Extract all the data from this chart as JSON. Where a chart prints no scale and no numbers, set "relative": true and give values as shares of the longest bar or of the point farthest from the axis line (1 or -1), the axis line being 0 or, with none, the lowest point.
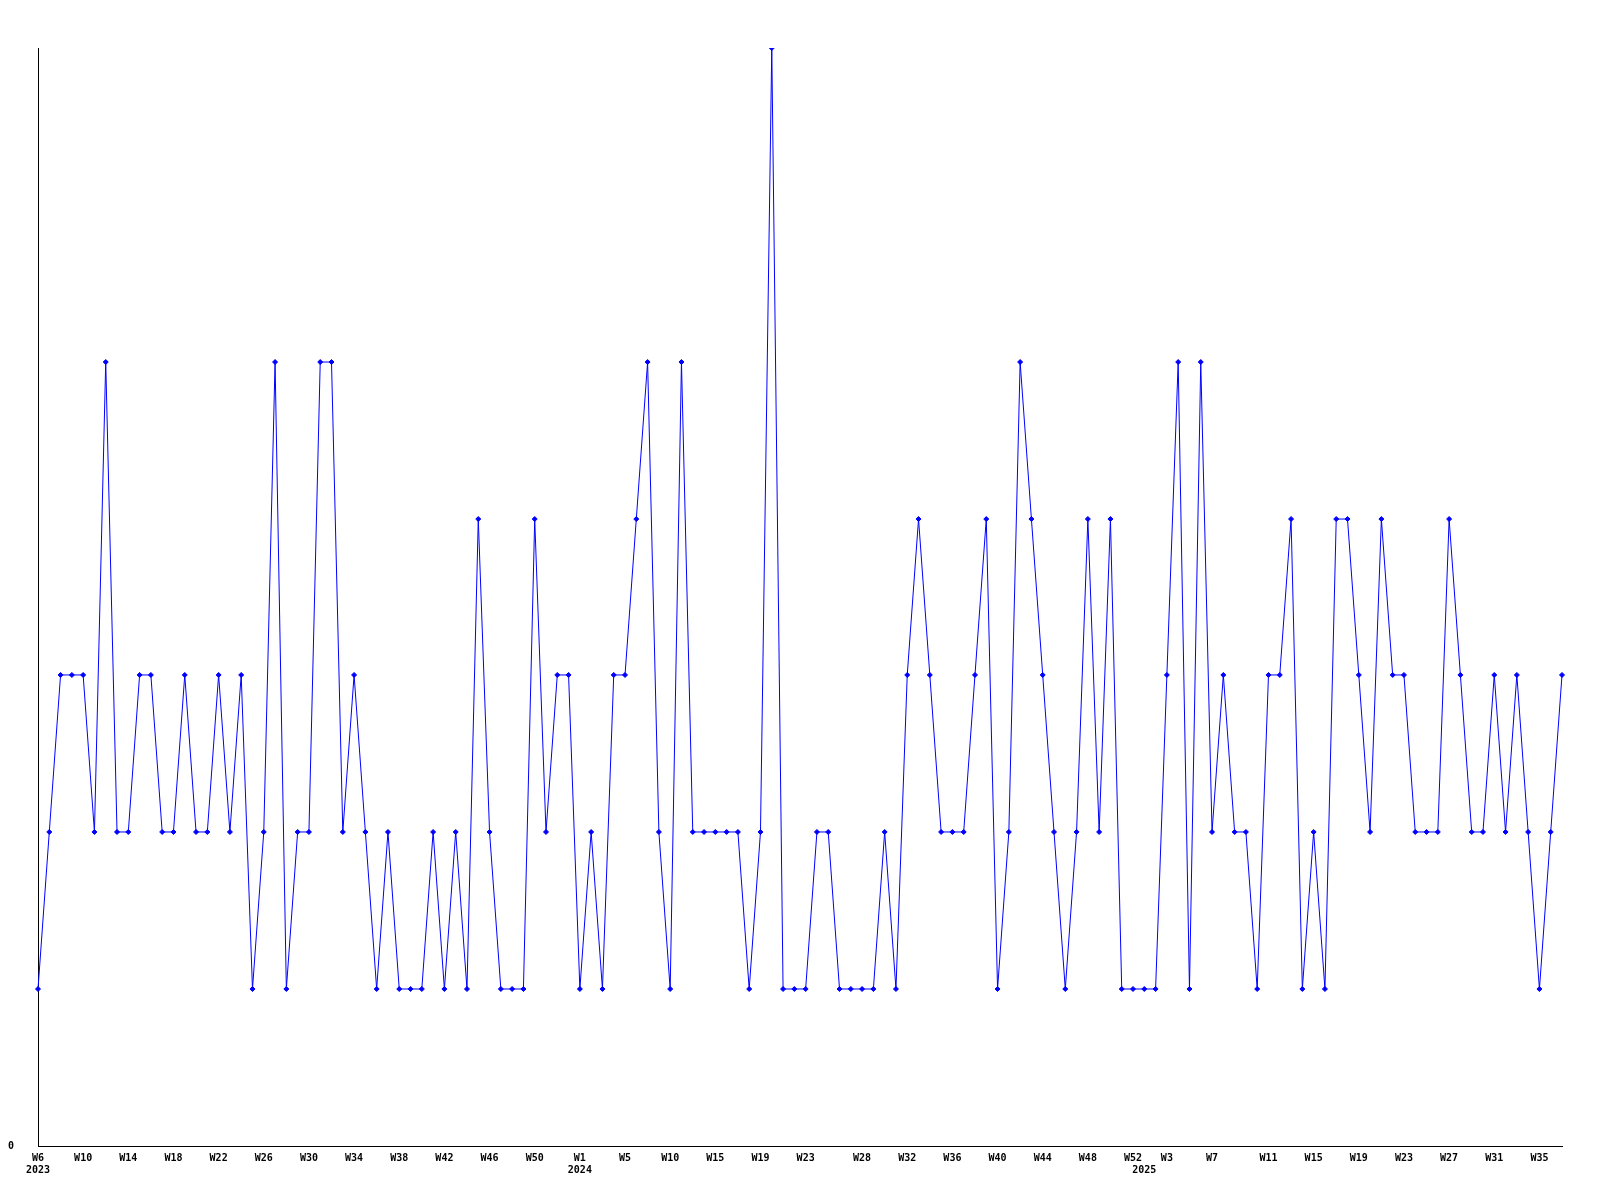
{
  "chart_data": {
    "type": "line",
    "relative": true,
    "grid": false,
    "legend": false,
    "marker": "diamond",
    "line_style": "solid",
    "annotations": [
      "0"
    ],
    "categories": [
      "W6\n2023",
      null,
      null,
      null,
      "W10",
      null,
      null,
      null,
      "W14",
      null,
      null,
      null,
      "W18",
      null,
      null,
      null,
      "W22",
      null,
      null,
      null,
      "W26",
      null,
      null,
      null,
      "W30",
      null,
      null,
      null,
      "W34",
      null,
      null,
      null,
      "W38",
      null,
      null,
      null,
      "W42",
      null,
      null,
      null,
      "W46",
      null,
      null,
      null,
      "W50",
      null,
      null,
      null,
      "W1\n2024",
      null,
      null,
      null,
      "W5",
      null,
      null,
      null,
      "W10",
      null,
      null,
      null,
      "W15",
      null,
      null,
      null,
      "W19",
      null,
      null,
      null,
      "W23",
      null,
      null,
      null,
      null,
      "W28",
      null,
      null,
      null,
      "W32",
      null,
      null,
      null,
      "W36",
      null,
      null,
      null,
      "W40",
      null,
      null,
      null,
      "W44",
      null,
      null,
      null,
      "W48",
      null,
      null,
      null,
      "W52",
      "\n2025",
      null,
      "W3",
      null,
      null,
      null,
      "W7",
      null,
      null,
      null,
      null,
      "W11",
      null,
      null,
      null,
      "W15",
      null,
      null,
      null,
      "W19",
      null,
      null,
      null,
      "W23",
      null,
      null,
      null,
      "W27",
      null,
      null,
      null,
      "W31",
      null,
      null,
      null,
      "W35",
      null,
      null
    ],
    "series": [
      {
        "color": "#0000ff",
        "values": [
          0.143,
          0.286,
          0.429,
          0.429,
          0.429,
          0.286,
          0.714,
          0.286,
          0.286,
          0.429,
          0.429,
          0.286,
          0.286,
          0.429,
          0.286,
          0.286,
          0.429,
          0.286,
          0.429,
          0.143,
          0.286,
          0.714,
          0.143,
          0.286,
          0.286,
          0.714,
          0.714,
          0.286,
          0.429,
          0.286,
          0.143,
          0.286,
          0.143,
          0.143,
          0.143,
          0.286,
          0.143,
          0.286,
          0.143,
          0.571,
          0.286,
          0.143,
          0.143,
          0.143,
          0.571,
          0.286,
          0.429,
          0.429,
          0.143,
          0.286,
          0.143,
          0.429,
          0.429,
          0.571,
          0.714,
          0.286,
          0.143,
          0.714,
          0.286,
          0.286,
          0.286,
          0.286,
          0.286,
          0.143,
          0.286,
          1,
          0.143,
          0.143,
          0.143,
          0.286,
          0.286,
          0.143,
          0.143,
          0.143,
          0.143,
          0.286,
          0.143,
          0.429,
          0.571,
          0.429,
          0.286,
          0.286,
          0.286,
          0.429,
          0.571,
          0.143,
          0.286,
          0.714,
          0.571,
          0.429,
          0.286,
          0.143,
          0.286,
          0.571,
          0.286,
          0.571,
          0.143,
          0.143,
          0.143,
          0.143,
          0.429,
          0.714,
          0.143,
          0.714,
          0.286,
          0.429,
          0.286,
          0.286,
          0.143,
          0.429,
          0.429,
          0.571,
          0.143,
          0.286,
          0.143,
          0.571,
          0.571,
          0.429,
          0.286,
          0.571,
          0.429,
          0.429,
          0.286,
          0.286,
          0.286,
          0.571,
          0.429,
          0.286,
          0.286,
          0.429,
          0.286,
          0.429,
          0.286,
          0.143,
          0.286,
          0.429
        ]
      }
    ]
  }
}
